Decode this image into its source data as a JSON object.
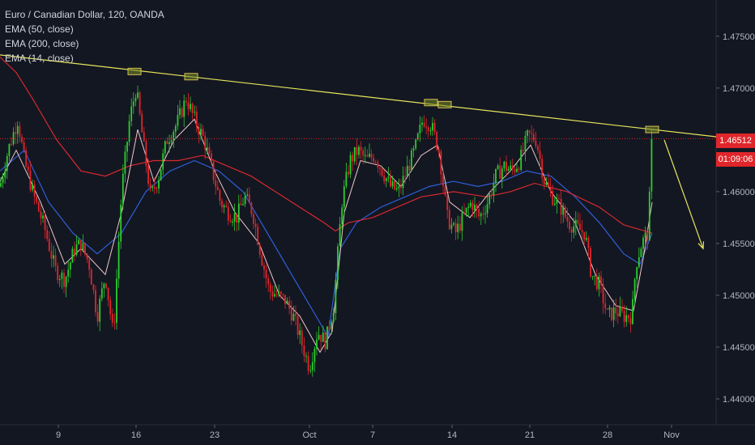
{
  "header": {
    "title": "Euro / Canadian Dollar, 120, OANDA",
    "indicators": [
      "EMA (50, close)",
      "EMA (200, close)",
      "EMA (14, close)"
    ]
  },
  "price_axis": {
    "labels": [
      "1.47500",
      "1.47000",
      "1.46500",
      "1.46000",
      "1.45500",
      "1.45000",
      "1.44500",
      "1.44000"
    ],
    "current_price": "1.46512",
    "countdown": "01:09:06"
  },
  "time_axis": {
    "labels": [
      "9",
      "16",
      "23",
      "Oct",
      "7",
      "14",
      "21",
      "28",
      "Nov"
    ]
  },
  "colors": {
    "background": "#131722",
    "up_candle": "#2ecc2e",
    "down_candle": "#e0262b",
    "ema50": "#2f5fd8",
    "ema200": "#d8282e",
    "ema14": "#f0c8c8",
    "trendline": "#e6e65a",
    "price_line": "#e0262b"
  },
  "chart_data": {
    "type": "candlestick",
    "title": "Euro / Canadian Dollar, 120, OANDA",
    "ylim": [
      1.4375,
      1.4785
    ],
    "y_ticks": [
      1.475,
      1.47,
      1.465,
      1.46,
      1.455,
      1.45,
      1.445,
      1.44
    ],
    "x_tick_labels": [
      "9",
      "16",
      "23",
      "Oct",
      "7",
      "14",
      "21",
      "28",
      "Nov"
    ],
    "price_path": [
      [
        0,
        1.4605
      ],
      [
        10,
        1.464
      ],
      [
        22,
        1.467
      ],
      [
        30,
        1.463
      ],
      [
        42,
        1.4595
      ],
      [
        55,
        1.4565
      ],
      [
        68,
        1.4525
      ],
      [
        80,
        1.4515
      ],
      [
        92,
        1.4545
      ],
      [
        100,
        1.455
      ],
      [
        110,
        1.453
      ],
      [
        120,
        1.448
      ],
      [
        130,
        1.452
      ],
      [
        140,
        1.446
      ],
      [
        150,
        1.46
      ],
      [
        160,
        1.467
      ],
      [
        168,
        1.47
      ],
      [
        178,
        1.464
      ],
      [
        186,
        1.4595
      ],
      [
        196,
        1.4615
      ],
      [
        206,
        1.465
      ],
      [
        218,
        1.4665
      ],
      [
        230,
        1.469
      ],
      [
        240,
        1.467
      ],
      [
        252,
        1.465
      ],
      [
        262,
        1.462
      ],
      [
        272,
        1.459
      ],
      [
        282,
        1.458
      ],
      [
        292,
        1.4575
      ],
      [
        302,
        1.4595
      ],
      [
        312,
        1.458
      ],
      [
        322,
        1.454
      ],
      [
        332,
        1.4505
      ],
      [
        342,
        1.45
      ],
      [
        352,
        1.4495
      ],
      [
        362,
        1.448
      ],
      [
        372,
        1.4455
      ],
      [
        382,
        1.443
      ],
      [
        392,
        1.4465
      ],
      [
        402,
        1.4455
      ],
      [
        412,
        1.449
      ],
      [
        422,
        1.459
      ],
      [
        432,
        1.463
      ],
      [
        442,
        1.464
      ],
      [
        452,
        1.463
      ],
      [
        462,
        1.4635
      ],
      [
        472,
        1.462
      ],
      [
        482,
        1.4605
      ],
      [
        492,
        1.46
      ],
      [
        502,
        1.462
      ],
      [
        512,
        1.464
      ],
      [
        522,
        1.467
      ],
      [
        532,
        1.4665
      ],
      [
        542,
        1.464
      ],
      [
        552,
        1.4575
      ],
      [
        562,
        1.456
      ],
      [
        572,
        1.4575
      ],
      [
        582,
        1.459
      ],
      [
        592,
        1.4575
      ],
      [
        602,
        1.459
      ],
      [
        612,
        1.4615
      ],
      [
        622,
        1.4625
      ],
      [
        632,
        1.462
      ],
      [
        642,
        1.463
      ],
      [
        652,
        1.4655
      ],
      [
        662,
        1.465
      ],
      [
        672,
        1.461
      ],
      [
        682,
        1.4595
      ],
      [
        692,
        1.4585
      ],
      [
        702,
        1.457
      ],
      [
        712,
        1.4565
      ],
      [
        722,
        1.456
      ],
      [
        730,
        1.452
      ],
      [
        740,
        1.451
      ],
      [
        750,
        1.448
      ],
      [
        760,
        1.4485
      ],
      [
        770,
        1.448
      ],
      [
        780,
        1.448
      ],
      [
        785,
        1.453
      ],
      [
        792,
        1.455
      ],
      [
        800,
        1.456
      ],
      [
        805,
        1.465
      ]
    ],
    "series": [
      {
        "name": "EMA (50, close)",
        "points": [
          [
            0,
            1.462
          ],
          [
            30,
            1.464
          ],
          [
            60,
            1.459
          ],
          [
            90,
            1.456
          ],
          [
            120,
            1.454
          ],
          [
            150,
            1.456
          ],
          [
            180,
            1.46
          ],
          [
            210,
            1.462
          ],
          [
            240,
            1.463
          ],
          [
            270,
            1.462
          ],
          [
            300,
            1.46
          ],
          [
            330,
            1.456
          ],
          [
            360,
            1.452
          ],
          [
            390,
            1.448
          ],
          [
            405,
            1.446
          ],
          [
            420,
            1.4545
          ],
          [
            440,
            1.457
          ],
          [
            470,
            1.4585
          ],
          [
            500,
            1.4595
          ],
          [
            530,
            1.4605
          ],
          [
            560,
            1.461
          ],
          [
            590,
            1.4605
          ],
          [
            620,
            1.461
          ],
          [
            650,
            1.462
          ],
          [
            680,
            1.4615
          ],
          [
            710,
            1.4595
          ],
          [
            740,
            1.457
          ],
          [
            770,
            1.454
          ],
          [
            790,
            1.453
          ],
          [
            805,
            1.456
          ]
        ]
      },
      {
        "name": "EMA (200, close)",
        "points": [
          [
            0,
            1.473
          ],
          [
            20,
            1.4715
          ],
          [
            40,
            1.469
          ],
          [
            70,
            1.465
          ],
          [
            100,
            1.462
          ],
          [
            130,
            1.4615
          ],
          [
            160,
            1.4625
          ],
          [
            190,
            1.463
          ],
          [
            220,
            1.463
          ],
          [
            250,
            1.4635
          ],
          [
            280,
            1.4625
          ],
          [
            310,
            1.4615
          ],
          [
            340,
            1.46
          ],
          [
            370,
            1.4585
          ],
          [
            400,
            1.457
          ],
          [
            414,
            1.4562
          ],
          [
            430,
            1.457
          ],
          [
            460,
            1.4575
          ],
          [
            490,
            1.4585
          ],
          [
            520,
            1.4595
          ],
          [
            560,
            1.46
          ],
          [
            600,
            1.4595
          ],
          [
            630,
            1.46
          ],
          [
            660,
            1.4608
          ],
          [
            700,
            1.46
          ],
          [
            740,
            1.4585
          ],
          [
            770,
            1.4568
          ],
          [
            805,
            1.456
          ]
        ]
      },
      {
        "name": "EMA (14, close)",
        "points": [
          [
            0,
            1.461
          ],
          [
            20,
            1.464
          ],
          [
            50,
            1.459
          ],
          [
            80,
            1.453
          ],
          [
            100,
            1.4545
          ],
          [
            130,
            1.452
          ],
          [
            150,
            1.458
          ],
          [
            170,
            1.466
          ],
          [
            190,
            1.461
          ],
          [
            215,
            1.465
          ],
          [
            240,
            1.467
          ],
          [
            265,
            1.462
          ],
          [
            290,
            1.458
          ],
          [
            320,
            1.455
          ],
          [
            345,
            1.45
          ],
          [
            370,
            1.448
          ],
          [
            395,
            1.4445
          ],
          [
            410,
            1.4465
          ],
          [
            425,
            1.458
          ],
          [
            445,
            1.463
          ],
          [
            470,
            1.4625
          ],
          [
            495,
            1.4605
          ],
          [
            520,
            1.4635
          ],
          [
            540,
            1.4645
          ],
          [
            555,
            1.459
          ],
          [
            580,
            1.4575
          ],
          [
            605,
            1.46
          ],
          [
            630,
            1.462
          ],
          [
            655,
            1.4645
          ],
          [
            680,
            1.46
          ],
          [
            710,
            1.457
          ],
          [
            735,
            1.452
          ],
          [
            760,
            1.449
          ],
          [
            782,
            1.4485
          ],
          [
            795,
            1.454
          ],
          [
            805,
            1.459
          ]
        ]
      }
    ],
    "trendline": [
      [
        0,
        1.4732
      ],
      [
        884,
        1.4653
      ]
    ],
    "projection_arrow": [
      [
        820,
        1.465
      ],
      [
        868,
        1.4545
      ]
    ],
    "touch_markers": [
      [
        166,
        1.4716
      ],
      [
        236,
        1.4711
      ],
      [
        532,
        1.4686
      ],
      [
        549,
        1.4684
      ],
      [
        805,
        1.466
      ]
    ],
    "current_price": 1.46512
  }
}
